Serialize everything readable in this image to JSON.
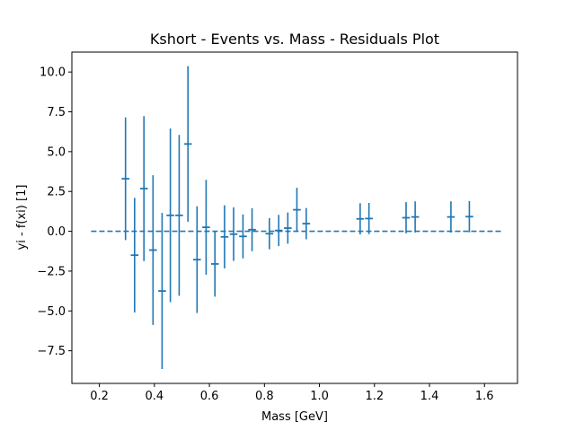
{
  "chart_data": {
    "type": "scatter",
    "title": "Kshort - Events vs. Mass - Residuals Plot",
    "xlabel": "Mass [GeV]",
    "ylabel": "yi - f(xi) [1]",
    "xlim": [
      0.1,
      1.72
    ],
    "ylim": [
      -9.55,
      11.25
    ],
    "xticks": [
      "0.2",
      "0.4",
      "0.6",
      "0.8",
      "1.0",
      "1.2",
      "1.4",
      "1.6"
    ],
    "yticks": [
      "−7.5",
      "−5.0",
      "−2.5",
      "0.0",
      "2.5",
      "5.0",
      "7.5",
      "10.0"
    ],
    "grid": false,
    "zero_line": {
      "style": "dashed",
      "x": [
        0.17,
        1.66
      ],
      "y": 0.0
    },
    "series": [
      {
        "color": "#1f77b4",
        "points": [
          {
            "x": 0.295,
            "y": 3.3,
            "yerr": 3.85,
            "xerr": 0.014
          },
          {
            "x": 0.328,
            "y": -1.5,
            "yerr": 3.6,
            "xerr": 0.014
          },
          {
            "x": 0.362,
            "y": 2.68,
            "yerr": 4.55,
            "xerr": 0.014
          },
          {
            "x": 0.395,
            "y": -1.18,
            "yerr": 4.7,
            "xerr": 0.014
          },
          {
            "x": 0.428,
            "y": -3.75,
            "yerr": 4.9,
            "xerr": 0.014
          },
          {
            "x": 0.458,
            "y": 1.0,
            "yerr": 5.45,
            "xerr": 0.014
          },
          {
            "x": 0.49,
            "y": 1.0,
            "yerr": 5.05,
            "xerr": 0.014
          },
          {
            "x": 0.522,
            "y": 5.48,
            "yerr": 4.88,
            "xerr": 0.014
          },
          {
            "x": 0.555,
            "y": -1.78,
            "yerr": 3.35,
            "xerr": 0.014
          },
          {
            "x": 0.588,
            "y": 0.25,
            "yerr": 2.98,
            "xerr": 0.014
          },
          {
            "x": 0.62,
            "y": -2.05,
            "yerr": 2.05,
            "xerr": 0.014
          },
          {
            "x": 0.655,
            "y": -0.35,
            "yerr": 1.98,
            "xerr": 0.014
          },
          {
            "x": 0.688,
            "y": -0.18,
            "yerr": 1.68,
            "xerr": 0.014
          },
          {
            "x": 0.722,
            "y": -0.32,
            "yerr": 1.38,
            "xerr": 0.014
          },
          {
            "x": 0.755,
            "y": 0.1,
            "yerr": 1.35,
            "xerr": 0.014
          },
          {
            "x": 0.818,
            "y": -0.15,
            "yerr": 0.98,
            "xerr": 0.014
          },
          {
            "x": 0.852,
            "y": 0.05,
            "yerr": 0.98,
            "xerr": 0.014
          },
          {
            "x": 0.885,
            "y": 0.2,
            "yerr": 0.98,
            "xerr": 0.014
          },
          {
            "x": 0.918,
            "y": 1.35,
            "yerr": 1.38,
            "xerr": 0.014
          },
          {
            "x": 0.952,
            "y": 0.48,
            "yerr": 0.98,
            "xerr": 0.014
          },
          {
            "x": 1.148,
            "y": 0.78,
            "yerr": 0.98,
            "xerr": 0.014
          },
          {
            "x": 1.18,
            "y": 0.8,
            "yerr": 0.98,
            "xerr": 0.014
          },
          {
            "x": 1.315,
            "y": 0.85,
            "yerr": 0.98,
            "xerr": 0.014
          },
          {
            "x": 1.348,
            "y": 0.9,
            "yerr": 0.98,
            "xerr": 0.014
          },
          {
            "x": 1.478,
            "y": 0.9,
            "yerr": 0.98,
            "xerr": 0.014
          },
          {
            "x": 1.545,
            "y": 0.92,
            "yerr": 0.98,
            "xerr": 0.014
          }
        ]
      }
    ]
  }
}
